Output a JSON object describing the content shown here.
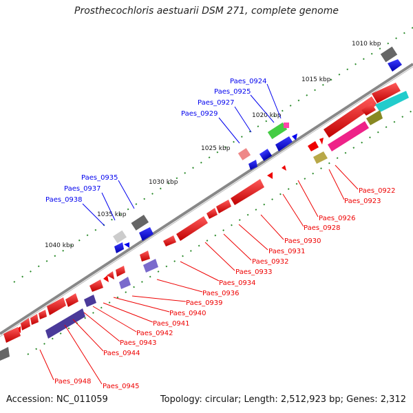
{
  "title": "Prosthecochloris aestuarii DSM 271, complete genome",
  "footer": {
    "accession": "Accession: NC_011059",
    "topology": "Topology: circular; Length: 2,512,923 bp; Genes: 2,312"
  },
  "ticks": [
    "1010 kbp",
    "1015 kbp",
    "1020 kbp",
    "1025 kbp",
    "1030 kbp",
    "1035 kbp",
    "1040 kbp"
  ],
  "labels_blue": [
    "Paes_0924",
    "Paes_0925",
    "Paes_0927",
    "Paes_0929",
    "Paes_0935",
    "Paes_0937",
    "Paes_0938"
  ],
  "labels_red": [
    "Paes_0922",
    "Paes_0923",
    "Paes_0926",
    "Paes_0928",
    "Paes_0930",
    "Paes_0931",
    "Paes_0932",
    "Paes_0933",
    "Paes_0934",
    "Paes_0936",
    "Paes_0939",
    "Paes_0940",
    "Paes_0941",
    "Paes_0942",
    "Paes_0943",
    "Paes_0944",
    "Paes_0948",
    "Paes_0945"
  ],
  "colors": {
    "forward": "#0000ee",
    "reverse": "#ee0000",
    "backbone": "#888888",
    "tick": "#2a8a2a"
  }
}
